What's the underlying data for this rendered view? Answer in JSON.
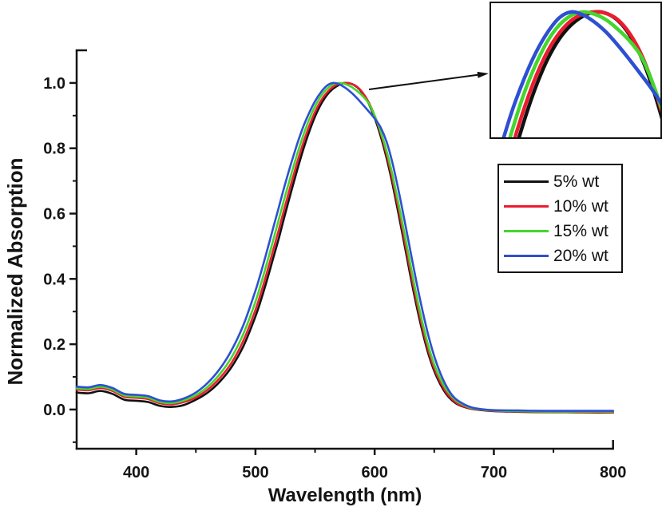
{
  "figure": {
    "type_note": "UV-Vis normalized absorption spectra figure with peak zoom inset",
    "background": "#ffffff",
    "axis_color": "#141414"
  },
  "legend": {
    "items": [
      {
        "label": "5% wt",
        "color": "#111111"
      },
      {
        "label": "10% wt",
        "color": "#ed1b2f"
      },
      {
        "label": "15% wt",
        "color": "#44d62c"
      },
      {
        "label": "20% wt",
        "color": "#2e4fd2"
      }
    ]
  },
  "chart_data": {
    "type": "line",
    "title": "",
    "xlabel": "Wavelength (nm)",
    "ylabel": "Normalized Absorption",
    "xlim": [
      350,
      800
    ],
    "ylim": [
      -0.12,
      1.1
    ],
    "grid": false,
    "legend_position": "right-middle",
    "x_tick_labels": [
      "400",
      "500",
      "600",
      "700",
      "800"
    ],
    "x_tick_values": [
      400,
      500,
      600,
      700,
      800
    ],
    "x_minor_ticks": [
      450,
      550,
      650,
      750
    ],
    "y_tick_labels": [
      "0.0",
      "0.2",
      "0.4",
      "0.6",
      "0.8",
      "1.0"
    ],
    "y_tick_values": [
      0.0,
      0.2,
      0.4,
      0.6,
      0.8,
      1.0
    ],
    "y_minor_ticks": [
      -0.1,
      0.1,
      0.3,
      0.5,
      0.7,
      0.9
    ],
    "x": [
      350,
      360,
      370,
      380,
      390,
      400,
      410,
      420,
      430,
      440,
      450,
      460,
      470,
      480,
      490,
      500,
      505,
      510,
      515,
      520,
      525,
      530,
      535,
      540,
      545,
      550,
      555,
      560,
      565,
      570,
      575,
      580,
      585,
      590,
      595,
      600,
      605,
      610,
      615,
      620,
      625,
      630,
      635,
      640,
      645,
      650,
      655,
      660,
      665,
      670,
      680,
      690,
      700,
      720,
      740,
      760,
      780,
      800
    ],
    "series": [
      {
        "name": "5% wt",
        "color": "#111111",
        "values": [
          0.052,
          0.05,
          0.057,
          0.048,
          0.03,
          0.027,
          0.023,
          0.011,
          0.008,
          0.014,
          0.03,
          0.052,
          0.085,
          0.13,
          0.195,
          0.285,
          0.34,
          0.4,
          0.465,
          0.53,
          0.6,
          0.668,
          0.733,
          0.795,
          0.85,
          0.897,
          0.935,
          0.963,
          0.982,
          0.994,
          1.0,
          0.998,
          0.988,
          0.968,
          0.937,
          0.893,
          0.838,
          0.77,
          0.69,
          0.6,
          0.505,
          0.41,
          0.32,
          0.24,
          0.172,
          0.118,
          0.078,
          0.048,
          0.028,
          0.015,
          0.003,
          -0.002,
          -0.005,
          -0.007,
          -0.008,
          -0.008,
          -0.009,
          -0.009
        ]
      },
      {
        "name": "10% wt",
        "color": "#ed1b2f",
        "values": [
          0.061,
          0.059,
          0.066,
          0.057,
          0.039,
          0.036,
          0.032,
          0.019,
          0.016,
          0.023,
          0.037,
          0.061,
          0.096,
          0.143,
          0.212,
          0.305,
          0.362,
          0.424,
          0.49,
          0.556,
          0.625,
          0.692,
          0.756,
          0.815,
          0.867,
          0.911,
          0.946,
          0.971,
          0.988,
          0.997,
          1.0,
          0.998,
          0.989,
          0.97,
          0.941,
          0.899,
          0.847,
          0.781,
          0.703,
          0.615,
          0.52,
          0.425,
          0.334,
          0.252,
          0.182,
          0.126,
          0.085,
          0.053,
          0.032,
          0.017,
          0.004,
          -0.001,
          -0.004,
          -0.006,
          -0.007,
          -0.007,
          -0.008,
          -0.008
        ]
      },
      {
        "name": "15% wt",
        "color": "#44d62c",
        "values": [
          0.065,
          0.063,
          0.07,
          0.061,
          0.043,
          0.04,
          0.036,
          0.023,
          0.02,
          0.028,
          0.044,
          0.07,
          0.108,
          0.16,
          0.233,
          0.33,
          0.39,
          0.453,
          0.52,
          0.588,
          0.655,
          0.72,
          0.782,
          0.838,
          0.888,
          0.928,
          0.96,
          0.982,
          0.995,
          1.0,
          0.997,
          0.989,
          0.976,
          0.96,
          0.938,
          0.9,
          0.852,
          0.792,
          0.718,
          0.632,
          0.54,
          0.445,
          0.352,
          0.268,
          0.196,
          0.138,
          0.095,
          0.062,
          0.039,
          0.023,
          0.006,
          0.0,
          -0.003,
          -0.005,
          -0.006,
          -0.006,
          -0.006,
          -0.006
        ]
      },
      {
        "name": "20% wt",
        "color": "#2e4fd2",
        "values": [
          0.07,
          0.068,
          0.075,
          0.066,
          0.048,
          0.045,
          0.041,
          0.028,
          0.025,
          0.034,
          0.052,
          0.082,
          0.124,
          0.182,
          0.26,
          0.364,
          0.425,
          0.49,
          0.558,
          0.625,
          0.692,
          0.755,
          0.813,
          0.865,
          0.908,
          0.944,
          0.972,
          0.992,
          1.0,
          0.996,
          0.986,
          0.972,
          0.954,
          0.934,
          0.913,
          0.891,
          0.864,
          0.82,
          0.754,
          0.672,
          0.58,
          0.486,
          0.392,
          0.305,
          0.228,
          0.163,
          0.112,
          0.073,
          0.044,
          0.027,
          0.008,
          0.001,
          -0.002,
          -0.003,
          -0.004,
          -0.004,
          -0.004,
          -0.004
        ]
      }
    ],
    "inset": {
      "description": "zoom of peak region",
      "xlim": [
        531,
        603
      ],
      "ylim": [
        0.828,
        1.012
      ]
    }
  }
}
